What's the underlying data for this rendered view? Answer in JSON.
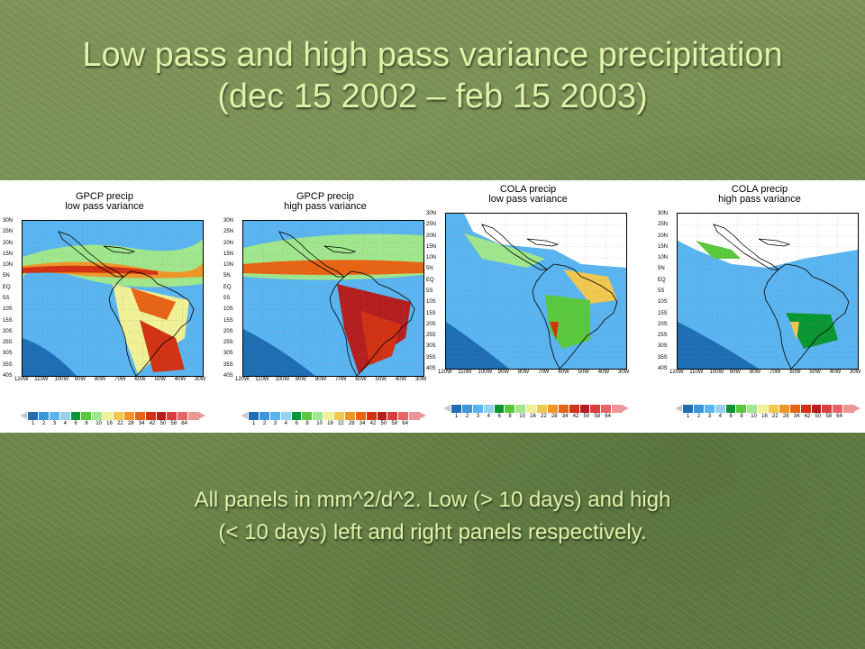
{
  "slide": {
    "title_line1": "Low pass and high pass variance precipitation",
    "title_line2": "(dec 15 2002 – feb 15 2003)",
    "caption_line1": "All panels in mm^2/d^2. Low (> 10 days) and high",
    "caption_line2": "(< 10 days) left and right panels respectively."
  },
  "colors": {
    "title_text": "#e0f2a8",
    "background": "#6f8a4c",
    "scale": [
      "#c8c8c8",
      "#1e6eb4",
      "#3c96dc",
      "#5ab4f0",
      "#96d2f0",
      "#0a9632",
      "#5ac83c",
      "#a0e68c",
      "#f0f096",
      "#f0c850",
      "#f09628",
      "#e66414",
      "#d23214",
      "#b41e1e",
      "#dc3c3c",
      "#e66464",
      "#eb9696"
    ]
  },
  "panels": [
    {
      "title_line1": "GPCP precip",
      "title_line2": "low pass variance",
      "pattern": "gpcp_low"
    },
    {
      "title_line1": "GPCP precip",
      "title_line2": "high pass variance",
      "pattern": "gpcp_high"
    },
    {
      "title_line1": "COLA precip",
      "title_line2": "low pass variance",
      "pattern": "cola_low"
    },
    {
      "title_line1": "COLA precip",
      "title_line2": "high pass variance",
      "pattern": "cola_high"
    }
  ],
  "latitude_labels": [
    "30N",
    "25N",
    "20N",
    "15N",
    "10N",
    "5N",
    "EQ",
    "5S",
    "10S",
    "15S",
    "20S",
    "25S",
    "30S",
    "35S",
    "40S"
  ],
  "longitude_labels": [
    "120W",
    "110W",
    "100W",
    "90W",
    "80W",
    "70W",
    "60W",
    "50W",
    "40W",
    "30W"
  ],
  "colorbar_labels": [
    "1",
    "2",
    "3",
    "4",
    "6",
    "8",
    "10",
    "16",
    "22",
    "28",
    "34",
    "42",
    "50",
    "58",
    "64"
  ]
}
